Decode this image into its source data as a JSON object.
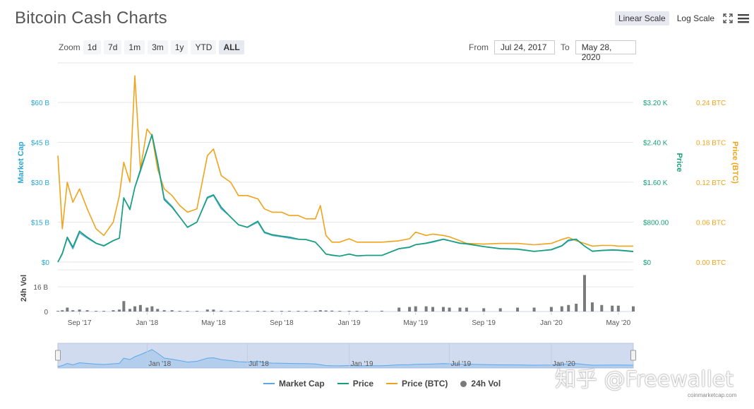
{
  "title": "Bitcoin Cash Charts",
  "scale_buttons": {
    "linear": "Linear Scale",
    "log": "Log Scale"
  },
  "icons": {
    "fullscreen": "fullscreen-icon",
    "menu": "hamburger-menu-icon"
  },
  "zoom": {
    "label": "Zoom",
    "buttons": [
      "1d",
      "7d",
      "1m",
      "3m",
      "1y",
      "YTD",
      "ALL"
    ],
    "active": "ALL"
  },
  "range": {
    "from_label": "From",
    "from_value": "Jul 24, 2017",
    "to_label": "To",
    "to_value": "May 28, 2020"
  },
  "colors": {
    "market_cap": "#5aa9e6",
    "price": "#17a078",
    "price_btc": "#f0a31c",
    "volume": "#7a7a7a",
    "axis_left": "#2aa6d6",
    "navigator_fill": "#d1dbef"
  },
  "chart_data": {
    "type": "line",
    "x_ticks": [
      "Sep '17",
      "Jan '18",
      "May '18",
      "Sep '18",
      "Jan '19",
      "May '19",
      "Sep '19",
      "Jan '20",
      "May '20"
    ],
    "axes": {
      "market_cap": {
        "label": "Market Cap",
        "ticks": [
          "$0",
          "$15 B",
          "$30 B",
          "$45 B",
          "$60 B"
        ],
        "ylim": [
          0,
          60
        ]
      },
      "price": {
        "label": "Price",
        "ticks": [
          "$0",
          "$800.00",
          "$1.60 K",
          "$2.40 K",
          "$3.20 K"
        ],
        "ylim": [
          0,
          3200
        ]
      },
      "price_btc": {
        "label": "Price (BTC)",
        "ticks": [
          "0.00 BTC",
          "0.06 BTC",
          "0.12 BTC",
          "0.18 BTC",
          "0.24 BTC"
        ],
        "ylim": [
          0,
          0.24
        ]
      },
      "volume": {
        "label": "24h Vol",
        "ticks": [
          "0",
          "16 B"
        ],
        "ylim": [
          0,
          32
        ]
      }
    },
    "x": [
      "2017-07-24",
      "2017-08-01",
      "2017-08-10",
      "2017-08-20",
      "2017-09-01",
      "2017-09-15",
      "2017-10-01",
      "2017-10-15",
      "2017-11-01",
      "2017-11-12",
      "2017-11-20",
      "2017-12-01",
      "2017-12-10",
      "2017-12-20",
      "2018-01-01",
      "2018-01-10",
      "2018-01-20",
      "2018-02-01",
      "2018-02-15",
      "2018-03-01",
      "2018-03-15",
      "2018-04-01",
      "2018-04-20",
      "2018-05-01",
      "2018-05-15",
      "2018-06-01",
      "2018-06-15",
      "2018-07-01",
      "2018-07-20",
      "2018-08-01",
      "2018-08-15",
      "2018-09-01",
      "2018-09-15",
      "2018-10-01",
      "2018-10-15",
      "2018-11-01",
      "2018-11-10",
      "2018-11-20",
      "2018-12-01",
      "2018-12-15",
      "2019-01-01",
      "2019-01-15",
      "2019-02-01",
      "2019-03-01",
      "2019-04-01",
      "2019-04-20",
      "2019-05-01",
      "2019-05-20",
      "2019-06-01",
      "2019-06-20",
      "2019-07-01",
      "2019-07-20",
      "2019-08-01",
      "2019-09-01",
      "2019-10-01",
      "2019-11-01",
      "2019-12-01",
      "2020-01-01",
      "2020-01-20",
      "2020-02-01",
      "2020-02-15",
      "2020-03-01",
      "2020-03-15",
      "2020-04-01",
      "2020-04-20",
      "2020-05-01",
      "2020-05-28"
    ],
    "series": [
      {
        "name": "Market Cap",
        "axis": "market_cap",
        "values": [
          0,
          3,
          9,
          5,
          11,
          9,
          7,
          6,
          8,
          9,
          24,
          20,
          28,
          34,
          42,
          48,
          38,
          24,
          21,
          17,
          13,
          15,
          24,
          25,
          20,
          17,
          14,
          13,
          15,
          11,
          10,
          9.5,
          9,
          8.5,
          8.5,
          7.5,
          5.5,
          3,
          2.5,
          2.2,
          3,
          2.3,
          2.5,
          2.5,
          5,
          5.5,
          6.5,
          7,
          7.5,
          8.5,
          8,
          7,
          6.8,
          5.8,
          5,
          4.8,
          4,
          4.6,
          6,
          8,
          8.5,
          6,
          4,
          4.3,
          4.5,
          4.4,
          3.9
        ]
      },
      {
        "name": "Price",
        "axis": "price",
        "values": [
          0,
          180,
          500,
          300,
          620,
          500,
          380,
          330,
          430,
          480,
          1290,
          1050,
          1500,
          1850,
          2250,
          2550,
          2000,
          1250,
          1100,
          900,
          700,
          800,
          1300,
          1350,
          1100,
          900,
          750,
          700,
          820,
          600,
          550,
          520,
          500,
          460,
          450,
          400,
          290,
          160,
          140,
          120,
          160,
          125,
          135,
          135,
          270,
          300,
          350,
          380,
          410,
          460,
          430,
          380,
          370,
          310,
          270,
          260,
          215,
          250,
          330,
          440,
          460,
          320,
          220,
          235,
          245,
          240,
          215
        ]
      },
      {
        "name": "Price (BTC)",
        "axis": "price_btc",
        "values": [
          0.16,
          0.05,
          0.12,
          0.09,
          0.11,
          0.08,
          0.05,
          0.04,
          0.06,
          0.1,
          0.15,
          0.12,
          0.28,
          0.14,
          0.2,
          0.19,
          0.14,
          0.11,
          0.1,
          0.085,
          0.075,
          0.08,
          0.16,
          0.17,
          0.13,
          0.12,
          0.1,
          0.1,
          0.095,
          0.08,
          0.075,
          0.075,
          0.07,
          0.07,
          0.065,
          0.065,
          0.085,
          0.04,
          0.03,
          0.03,
          0.035,
          0.03,
          0.03,
          0.03,
          0.032,
          0.035,
          0.045,
          0.04,
          0.042,
          0.04,
          0.038,
          0.032,
          0.028,
          0.027,
          0.028,
          0.028,
          0.026,
          0.028,
          0.034,
          0.037,
          0.032,
          0.028,
          0.024,
          0.025,
          0.025,
          0.024,
          0.024
        ]
      },
      {
        "name": "24h Vol",
        "axis": "volume",
        "values": [
          0.5,
          1,
          3,
          1,
          1.5,
          1,
          0.5,
          0.5,
          1,
          1.5,
          8,
          2,
          4,
          5,
          3,
          4,
          2,
          1,
          1,
          0.5,
          0.5,
          0.5,
          1.5,
          1.5,
          0.7,
          0.5,
          0.5,
          0.5,
          0.5,
          0.5,
          0.5,
          0.5,
          0.5,
          0.5,
          0.5,
          0.5,
          1,
          0.8,
          0.7,
          0.5,
          0.5,
          0.5,
          0.6,
          0.6,
          3,
          3.5,
          4,
          4,
          3.5,
          3.5,
          3,
          3,
          3,
          2.5,
          2.5,
          3,
          3,
          3.5,
          4,
          5,
          6,
          28,
          7,
          5,
          4.5,
          4.5,
          4
        ]
      }
    ],
    "navigator_ticks": [
      "Jan '18",
      "Jul '18",
      "Jan '19",
      "Jul '19",
      "Jan '20"
    ],
    "legend": [
      "Market Cap",
      "Price",
      "Price (BTC)",
      "24h Vol"
    ],
    "legend_position": "bottom-center"
  },
  "watermark": "知乎 @Freewallet",
  "credit": "coinmarketcap.com"
}
